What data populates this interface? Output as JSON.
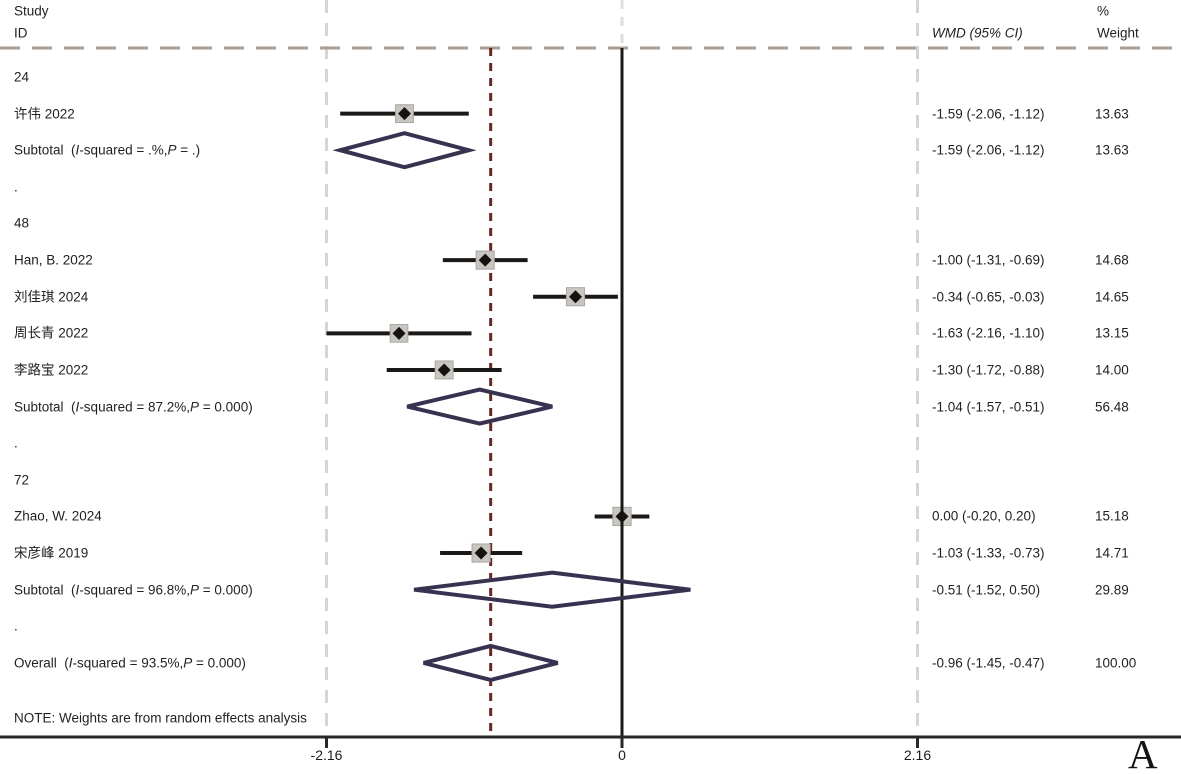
{
  "header": {
    "study": "Study",
    "id": "ID",
    "wmd": "WMD (95% CI)",
    "percent": "%",
    "weight": "Weight"
  },
  "note": "NOTE: Weights are from random effects analysis",
  "panel_label": "A",
  "colors": {
    "text": "#231f20",
    "ci_line": "#1b1918",
    "zero_line": "#1b1918",
    "axis": "#2b2724",
    "pooled_dashed": "#662722",
    "boundary_dashed": "#d8d4d0",
    "header_dashed": "#a79e95",
    "upper_zero_dashed": "#e0ddda",
    "diamond": "#393150",
    "marker_box_fill": "#c9c6c2",
    "marker_box_stroke": "#a9a6a2",
    "marker": "#151310"
  },
  "chart_data": {
    "type": "forest",
    "effect_measure": "WMD",
    "model": "random effects",
    "x_axis": {
      "tick_values": [
        -2.16,
        0,
        2.16
      ],
      "tick_labels": [
        "-2.16",
        "0",
        "2.16"
      ],
      "plot_range": [
        -2.16,
        2.16
      ],
      "zero_reference": 0,
      "pooled_line_at": -0.96
    },
    "rows": [
      {
        "kind": "group",
        "label": "24"
      },
      {
        "kind": "study",
        "label": "许伟 2022",
        "est": -1.59,
        "lo": -2.06,
        "hi": -1.12,
        "wmd_text": "-1.59 (-2.06, -1.12)",
        "weight": 13.63,
        "weight_text": "13.63"
      },
      {
        "kind": "subtotal",
        "label": "Subtotal  (I-squared = .%,P = .)",
        "est": -1.59,
        "lo": -2.06,
        "hi": -1.12,
        "wmd_text": "-1.59 (-2.06, -1.12)",
        "weight_text": "13.63"
      },
      {
        "kind": "spacer",
        "label": "."
      },
      {
        "kind": "group",
        "label": "48"
      },
      {
        "kind": "study",
        "label": "Han, B. 2022",
        "est": -1.0,
        "lo": -1.31,
        "hi": -0.69,
        "wmd_text": "-1.00 (-1.31, -0.69)",
        "weight": 14.68,
        "weight_text": "14.68"
      },
      {
        "kind": "study",
        "label": "刘佳琪 2024",
        "est": -0.34,
        "lo": -0.65,
        "hi": -0.03,
        "wmd_text": "-0.34 (-0.65, -0.03)",
        "weight": 14.65,
        "weight_text": "14.65"
      },
      {
        "kind": "study",
        "label": "周长青 2022",
        "est": -1.63,
        "lo": -2.16,
        "hi": -1.1,
        "wmd_text": "-1.63 (-2.16, -1.10)",
        "weight": 13.15,
        "weight_text": "13.15"
      },
      {
        "kind": "study",
        "label": "李路宝 2022",
        "est": -1.3,
        "lo": -1.72,
        "hi": -0.88,
        "wmd_text": "-1.30 (-1.72, -0.88)",
        "weight": 14.0,
        "weight_text": "14.00"
      },
      {
        "kind": "subtotal",
        "label": "Subtotal  (I-squared = 87.2%,P = 0.000)",
        "est": -1.04,
        "lo": -1.57,
        "hi": -0.51,
        "wmd_text": "-1.04 (-1.57, -0.51)",
        "weight_text": "56.48"
      },
      {
        "kind": "spacer",
        "label": "."
      },
      {
        "kind": "group",
        "label": "72"
      },
      {
        "kind": "study",
        "label": "Zhao, W. 2024",
        "est": 0.0,
        "lo": -0.2,
        "hi": 0.2,
        "wmd_text": "0.00 (-0.20, 0.20)",
        "weight": 15.18,
        "weight_text": "15.18"
      },
      {
        "kind": "study",
        "label": "宋彦峰 2019",
        "est": -1.03,
        "lo": -1.33,
        "hi": -0.73,
        "wmd_text": "-1.03 (-1.33, -0.73)",
        "weight": 14.71,
        "weight_text": "14.71"
      },
      {
        "kind": "subtotal",
        "label": "Subtotal  (I-squared = 96.8%,P = 0.000)",
        "est": -0.51,
        "lo": -1.52,
        "hi": 0.5,
        "wmd_text": "-0.51 (-1.52, 0.50)",
        "weight_text": "29.89"
      },
      {
        "kind": "spacer",
        "label": "."
      },
      {
        "kind": "overall",
        "label": "Overall  (I-squared = 93.5%,P = 0.000)",
        "est": -0.96,
        "lo": -1.45,
        "hi": -0.47,
        "wmd_text": "-0.96 (-1.45, -0.47)",
        "weight_text": "100.00"
      }
    ]
  }
}
